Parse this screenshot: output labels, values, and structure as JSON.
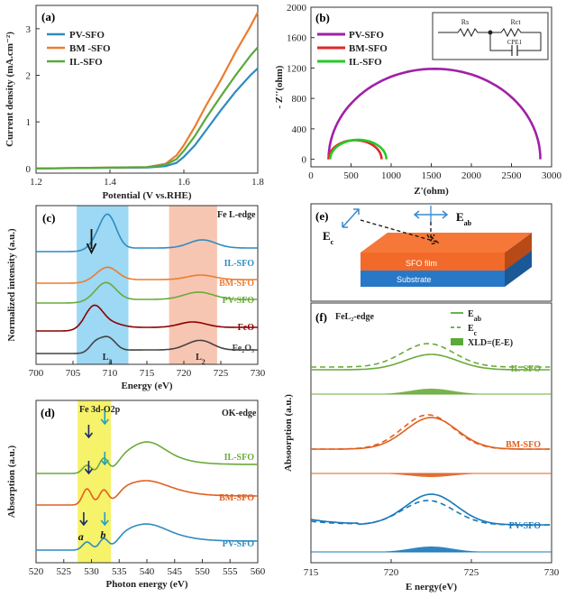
{
  "chart_data": [
    {
      "id": "a",
      "panel_label": "(a)",
      "type": "line",
      "xlabel": "Potential (V vs.RHE)",
      "ylabel": "Current density (mA.cm⁻²)",
      "xlim": [
        1.2,
        1.8
      ],
      "ylim": [
        -0.1,
        3.5
      ],
      "xticks": [
        "1.2",
        "1.4",
        "1.6",
        "1.8"
      ],
      "yticks": [
        "0",
        "1",
        "2",
        "3"
      ],
      "legend_position": "top-left",
      "series": [
        {
          "name": "PV-SFO",
          "color": "#2f8cc0",
          "x": [
            1.2,
            1.5,
            1.55,
            1.58,
            1.6,
            1.63,
            1.66,
            1.7,
            1.74,
            1.78,
            1.8
          ],
          "y": [
            0,
            0.02,
            0.05,
            0.12,
            0.25,
            0.5,
            0.82,
            1.25,
            1.65,
            2.0,
            2.15
          ]
        },
        {
          "name": "BM -SFO",
          "color": "#ec7c30",
          "x": [
            1.2,
            1.5,
            1.55,
            1.58,
            1.6,
            1.63,
            1.66,
            1.7,
            1.74,
            1.78,
            1.8
          ],
          "y": [
            0,
            0.03,
            0.1,
            0.28,
            0.5,
            0.9,
            1.35,
            1.9,
            2.5,
            3.05,
            3.35
          ]
        },
        {
          "name": "IL-SFO",
          "color": "#5aa83c",
          "x": [
            1.2,
            1.5,
            1.55,
            1.58,
            1.6,
            1.63,
            1.66,
            1.7,
            1.74,
            1.78,
            1.8
          ],
          "y": [
            0,
            0.03,
            0.08,
            0.2,
            0.38,
            0.7,
            1.08,
            1.55,
            2.0,
            2.42,
            2.6
          ]
        }
      ]
    },
    {
      "id": "b",
      "panel_label": "(b)",
      "type": "scatter",
      "xlabel": "Z'(ohm)",
      "ylabel": "- Z''(ohm)",
      "xlim": [
        0,
        3000
      ],
      "ylim": [
        -100,
        2000
      ],
      "xticks": [
        "0",
        "500",
        "1000",
        "1500",
        "2000",
        "2500",
        "3000"
      ],
      "yticks": [
        "0",
        "400",
        "800",
        "1200",
        "1600",
        "2000"
      ],
      "legend_position": "top-left",
      "circuit_labels": [
        "Rs",
        "Rct",
        "CPE1"
      ],
      "series": [
        {
          "name": "PV-SFO",
          "color": "#a020a8",
          "start": 220,
          "end": 2860,
          "peak": 1190
        },
        {
          "name": "BM-SFO",
          "color": "#e02828",
          "start": 220,
          "end": 880,
          "peak": 250
        },
        {
          "name": "IL-SFO",
          "color": "#28c828",
          "start": 240,
          "end": 940,
          "peak": 255
        }
      ]
    },
    {
      "id": "c",
      "panel_label": "(c)",
      "type": "line",
      "xlabel": "Energy (eV)",
      "ylabel": "Normalized intensity (a.u.)",
      "xlim": [
        700,
        730
      ],
      "xticks": [
        "700",
        "705",
        "710",
        "715",
        "720",
        "725",
        "730"
      ],
      "edge_label": "Fe L-edge",
      "peak_labels": [
        "L3",
        "L2"
      ],
      "highlight_L3": [
        705.5,
        712.5
      ],
      "highlight_L2": [
        718,
        724.5
      ],
      "series": [
        {
          "name": "IL-SFO",
          "color": "#2f8cc0",
          "offset": 4
        },
        {
          "name": "BM-SFO",
          "color": "#ec7c30",
          "offset": 3
        },
        {
          "name": "PV-SFO",
          "color": "#6aaa3a",
          "offset": 2
        },
        {
          "name": "FeO",
          "color": "#8b0000",
          "offset": 1
        },
        {
          "name": "Fe₂O₃",
          "color": "#444444",
          "offset": 0
        }
      ]
    },
    {
      "id": "d",
      "panel_label": "(d)",
      "type": "line",
      "xlabel": "Photon energy (eV)",
      "ylabel": "Absorption (a.u.)",
      "xlim": [
        520,
        560
      ],
      "xticks": [
        "520",
        "525",
        "530",
        "535",
        "540",
        "545",
        "550",
        "555",
        "560"
      ],
      "edge_label": "OK-edge",
      "band_label": "Fe 3d-O2p",
      "highlight": [
        527.5,
        533.5
      ],
      "peak_labels": [
        "a",
        "b"
      ],
      "series": [
        {
          "name": "IL-SFO",
          "color": "#6aaa3a",
          "offset": 2
        },
        {
          "name": "BM-SFO",
          "color": "#e06020",
          "offset": 1
        },
        {
          "name": "PV-SFO",
          "color": "#2f8cc0",
          "offset": 0
        }
      ]
    },
    {
      "id": "e",
      "panel_label": "(e)",
      "type": "diagram",
      "labels": {
        "ec": "E",
        "ec_sub": "c",
        "eab": "E",
        "eab_sub": "ab",
        "film": "SFO film",
        "substrate": "Substrate"
      }
    },
    {
      "id": "f",
      "panel_label": "(f)",
      "type": "line",
      "xlabel": "E nergy(eV)",
      "ylabel": "Absoorption (a.u.)",
      "xlim": [
        715,
        730
      ],
      "xticks": [
        "715",
        "720",
        "725",
        "730"
      ],
      "edge_label": "FeL₂-edge",
      "legend": [
        "E",
        "E",
        "XLD=(E-E)"
      ],
      "legend_subs": [
        "ab",
        "c"
      ],
      "series": [
        {
          "name": "IL-SFO",
          "color": "#6aaa3a"
        },
        {
          "name": "BM-SFO",
          "color": "#e06020"
        },
        {
          "name": "PV-SFO",
          "color": "#1878b8"
        }
      ]
    }
  ]
}
